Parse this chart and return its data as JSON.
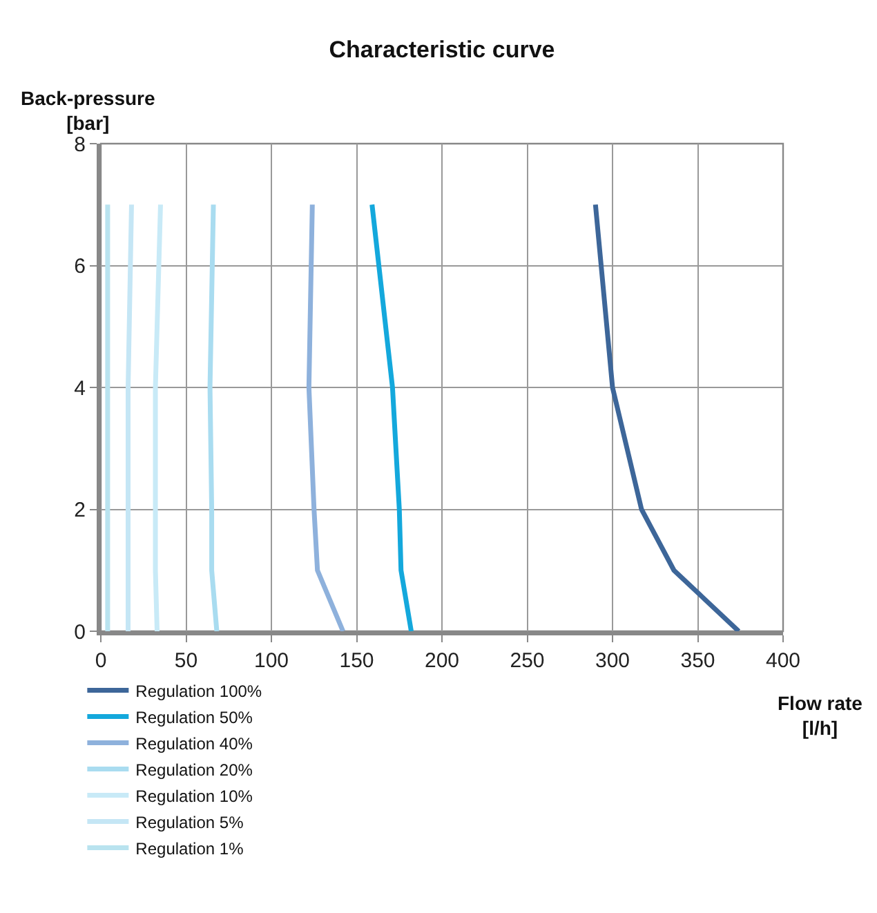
{
  "chart_data": {
    "type": "line",
    "title": "Characteristic curve",
    "xlabel": "Flow rate\n[l/h]",
    "ylabel": "Back-pressure\n[bar]",
    "xlim": [
      0,
      400
    ],
    "xticks": [
      0,
      50,
      100,
      150,
      200,
      250,
      300,
      350,
      400
    ],
    "ylim": [
      0,
      8
    ],
    "yticks": [
      0,
      2,
      4,
      6,
      8
    ],
    "grid": true,
    "legend": "bottom left",
    "series": [
      {
        "name": "Regulation 100%",
        "color": "#3d6699",
        "x": [
          374,
          336,
          317,
          300,
          290
        ],
        "values": [
          0,
          1,
          2,
          4,
          7
        ]
      },
      {
        "name": "Regulation 50%",
        "color": "#14a8dc",
        "x": [
          182,
          176,
          175,
          171,
          159
        ],
        "values": [
          0,
          1,
          2,
          4,
          7
        ]
      },
      {
        "name": "Regulation 40%",
        "color": "#8eb1dc",
        "x": [
          142,
          127,
          125,
          122,
          124
        ],
        "values": [
          0,
          1,
          2,
          4,
          7
        ]
      },
      {
        "name": "Regulation 20%",
        "color": "#a9dcf0",
        "x": [
          68,
          65,
          65,
          64,
          66
        ],
        "values": [
          0,
          1,
          2,
          4,
          7
        ]
      },
      {
        "name": "Regulation 10%",
        "color": "#c8eaf7",
        "x": [
          33,
          32,
          32,
          32,
          35
        ],
        "values": [
          0,
          1,
          2,
          4,
          7
        ]
      },
      {
        "name": "Regulation 5%",
        "color": "#c5e6f5",
        "x": [
          16,
          16,
          16,
          16,
          18
        ],
        "values": [
          0,
          1,
          2,
          4,
          7
        ]
      },
      {
        "name": "Regulation 1%",
        "color": "#b9e3ef",
        "x": [
          4,
          4,
          4,
          4,
          4
        ],
        "values": [
          0,
          1,
          2,
          4,
          7
        ]
      }
    ]
  }
}
